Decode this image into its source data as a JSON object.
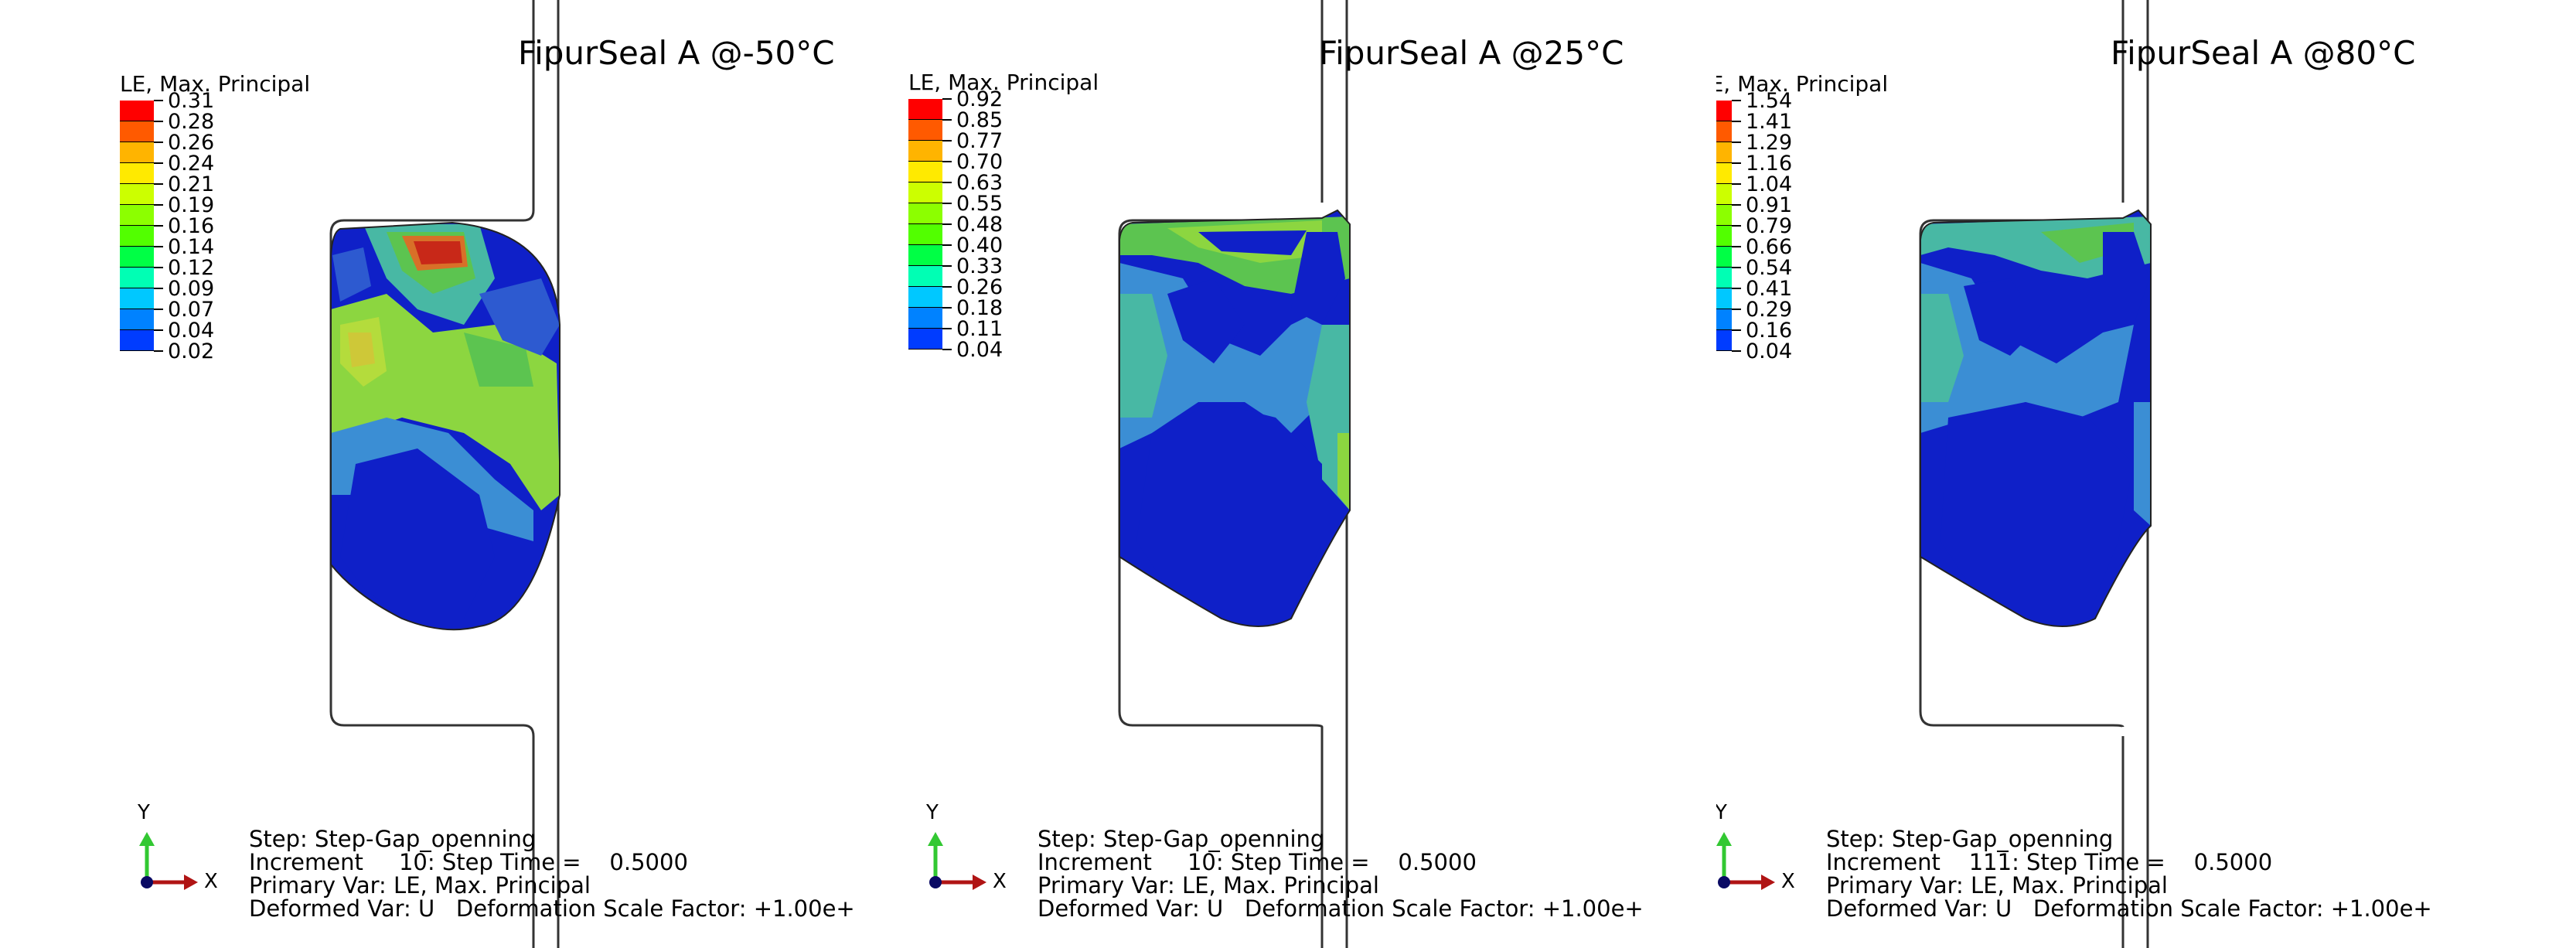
{
  "panels": [
    {
      "title": "FipurSeal A @-50°C",
      "legend_title": "LE, Max. Principal",
      "legend_values": [
        "0.31",
        "0.28",
        "0.26",
        "0.24",
        "0.21",
        "0.19",
        "0.16",
        "0.14",
        "0.12",
        "0.09",
        "0.07",
        "0.04",
        "0.02"
      ],
      "step": "Step: Step-Gap_openning",
      "increment": "Increment     10: Step Time =    0.5000",
      "primary_var": "Primary Var: LE, Max. Principal",
      "deformed_var": "Deformed Var: U   Deformation Scale Factor: +1.00e+",
      "triad_y": "Y",
      "triad_x": "X"
    },
    {
      "title": "FipurSeal A @25°C",
      "legend_title": "LE, Max. Principal",
      "legend_values": [
        "0.92",
        "0.85",
        "0.77",
        "0.70",
        "0.63",
        "0.55",
        "0.48",
        "0.40",
        "0.33",
        "0.26",
        "0.18",
        "0.11",
        "0.04"
      ],
      "step": "Step: Step-Gap_openning",
      "increment": "Increment     10: Step Time =    0.5000",
      "primary_var": "Primary Var: LE, Max. Principal",
      "deformed_var": "Deformed Var: U   Deformation Scale Factor: +1.00e+",
      "triad_y": "Y",
      "triad_x": "X"
    },
    {
      "title": "FipurSeal A @80°C",
      "legend_title": "LE, Max. Principal",
      "legend_values": [
        "1.54",
        "1.41",
        "1.29",
        "1.16",
        "1.04",
        "0.91",
        "0.79",
        "0.66",
        "0.54",
        "0.41",
        "0.29",
        "0.16",
        "0.04"
      ],
      "step": "Step: Step-Gap_openning",
      "increment": "Increment    111: Step Time =    0.5000",
      "primary_var": "Primary Var: LE, Max. Principal",
      "deformed_var": "Deformed Var: U   Deformation Scale Factor: +1.00e+",
      "triad_y": "Y",
      "triad_x": "X"
    }
  ],
  "colors": {
    "legend_scale": [
      "#ff0000",
      "#ff5a00",
      "#ffb400",
      "#ffea00",
      "#ccff00",
      "#8cff00",
      "#52ff00",
      "#00ff45",
      "#00ffb4",
      "#00c8ff",
      "#0082ff",
      "#003cff",
      "#0000ff"
    ],
    "plot_scale": [
      "#e02010",
      "#d87028",
      "#cec838",
      "#b4dc3c",
      "#8cd640",
      "#5cc450",
      "#48b8a4",
      "#3b8ed4",
      "#2d5ad0",
      "#1430c8",
      "#0010c8"
    ],
    "outline": "#333333",
    "axis_x": "#b01414",
    "axis_y": "#32c832",
    "axis_z": "#0a0a64"
  }
}
